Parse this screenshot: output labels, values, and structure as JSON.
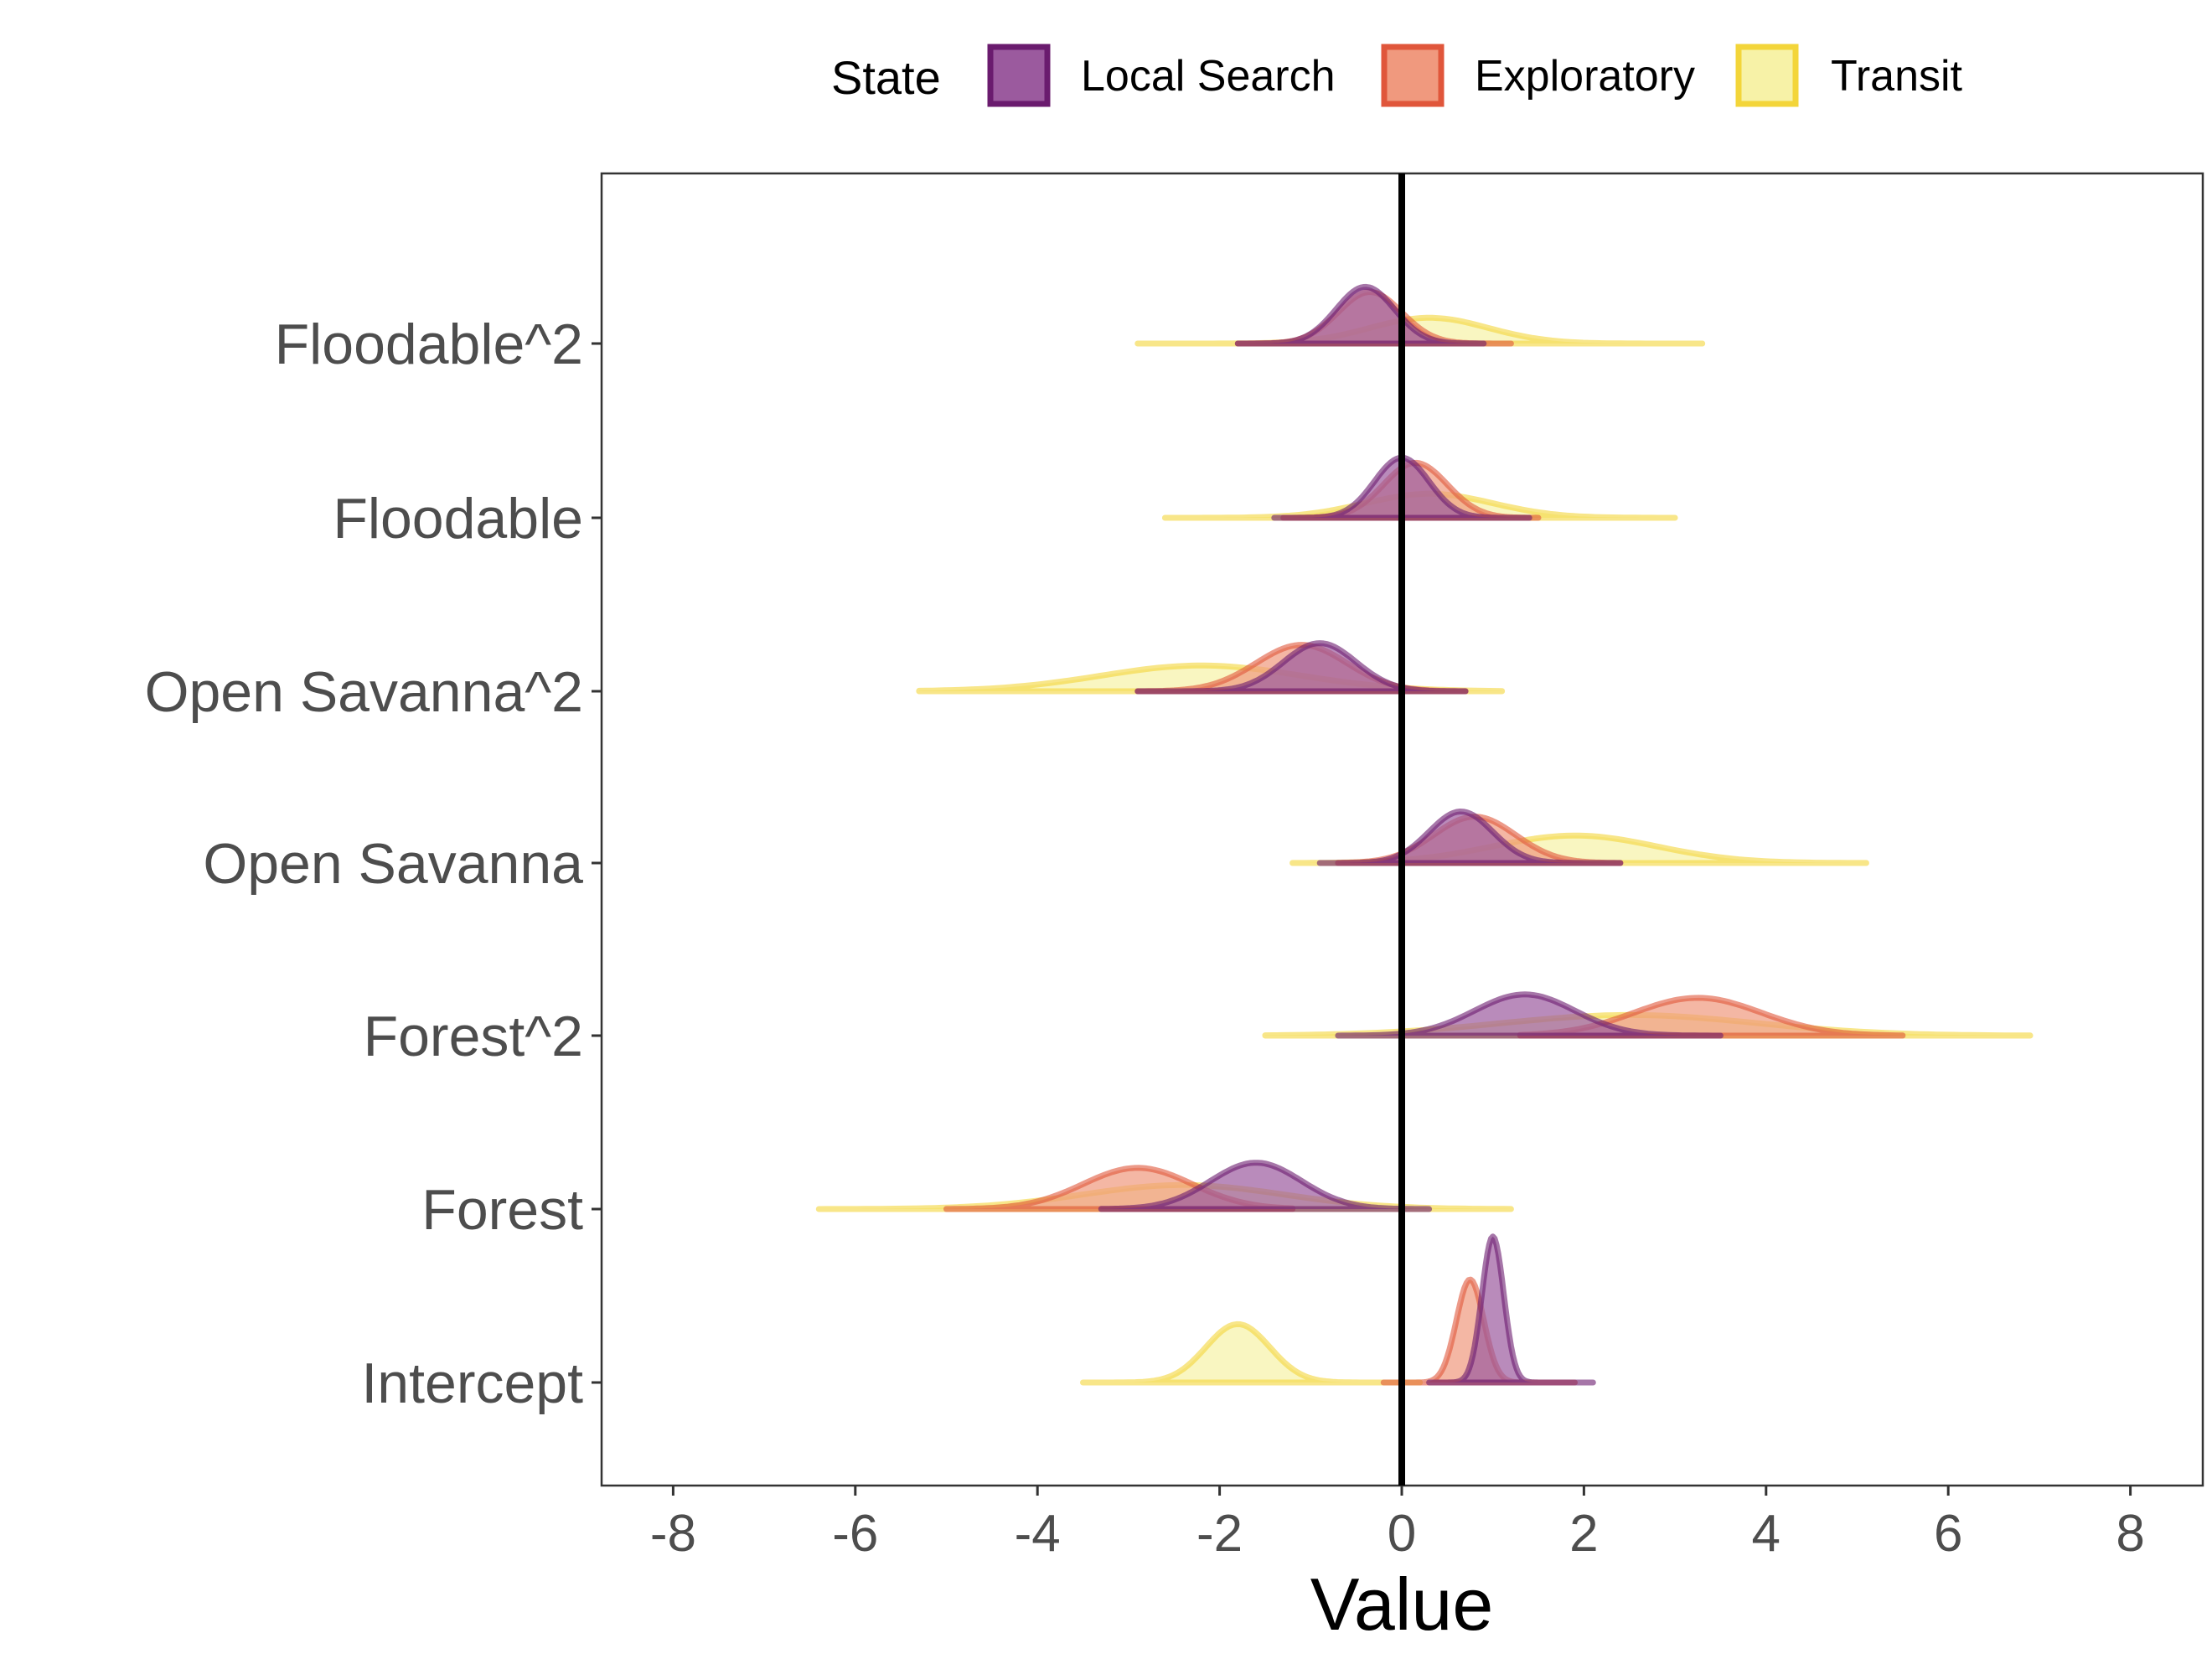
{
  "chart_data": {
    "type": "ridgeline",
    "title": "",
    "xlabel": "Value",
    "ylabel": "",
    "xlim": [
      -8.8,
      8.8
    ],
    "xticks": [
      -8,
      -6,
      -4,
      -2,
      0,
      2,
      4,
      6,
      8
    ],
    "xtick_labels": [
      "-8",
      "-6",
      "-4",
      "-2",
      "0",
      "2",
      "4",
      "6",
      "8"
    ],
    "reference_line_x": 0,
    "grid": false,
    "legend": {
      "title": "State",
      "position": "top"
    },
    "categories": [
      "Intercept",
      "Forest",
      "Forest^2",
      "Open Savanna",
      "Open Savanna^2",
      "Floodable",
      "Floodable^2"
    ],
    "series": [
      {
        "name": "Local Search",
        "color": "#6a1b6e",
        "fill": "#9b5a9e",
        "distributions": [
          {
            "category": "Intercept",
            "mode": 1.0,
            "sd": 0.12,
            "min": 0.3,
            "max": 2.1,
            "peak": 0.85
          },
          {
            "category": "Forest",
            "mode": -1.6,
            "sd": 0.5,
            "min": -3.3,
            "max": 0.3,
            "peak": 0.27
          },
          {
            "category": "Forest^2",
            "mode": 1.35,
            "sd": 0.55,
            "min": -0.7,
            "max": 3.5,
            "peak": 0.24
          },
          {
            "category": "Open Savanna",
            "mode": 0.65,
            "sd": 0.35,
            "min": -0.9,
            "max": 2.4,
            "peak": 0.3
          },
          {
            "category": "Open Savanna^2",
            "mode": -0.9,
            "sd": 0.4,
            "min": -2.9,
            "max": 0.7,
            "peak": 0.28
          },
          {
            "category": "Floodable",
            "mode": 0.0,
            "sd": 0.3,
            "min": -1.4,
            "max": 1.4,
            "peak": 0.35
          },
          {
            "category": "Floodable^2",
            "mode": -0.4,
            "sd": 0.32,
            "min": -1.8,
            "max": 0.9,
            "peak": 0.33
          }
        ]
      },
      {
        "name": "Exploratory",
        "color": "#e0563b",
        "fill": "#f0997e",
        "distributions": [
          {
            "category": "Intercept",
            "mode": 0.75,
            "sd": 0.15,
            "min": -0.2,
            "max": 1.9,
            "peak": 0.6
          },
          {
            "category": "Forest",
            "mode": -2.9,
            "sd": 0.6,
            "min": -5.0,
            "max": -1.2,
            "peak": 0.24
          },
          {
            "category": "Forest^2",
            "mode": 3.25,
            "sd": 0.7,
            "min": 1.3,
            "max": 5.5,
            "peak": 0.22
          },
          {
            "category": "Open Savanna",
            "mode": 0.8,
            "sd": 0.45,
            "min": -0.7,
            "max": 2.4,
            "peak": 0.27
          },
          {
            "category": "Open Savanna^2",
            "mode": -1.1,
            "sd": 0.5,
            "min": -2.9,
            "max": 0.7,
            "peak": 0.27
          },
          {
            "category": "Floodable",
            "mode": 0.15,
            "sd": 0.35,
            "min": -1.3,
            "max": 1.5,
            "peak": 0.32
          },
          {
            "category": "Floodable^2",
            "mode": -0.35,
            "sd": 0.35,
            "min": -1.8,
            "max": 1.2,
            "peak": 0.3
          }
        ]
      },
      {
        "name": "Transit",
        "color": "#f3d53a",
        "fill": "#f7f2a7",
        "distributions": [
          {
            "category": "Intercept",
            "mode": -1.8,
            "sd": 0.35,
            "min": -3.5,
            "max": 0.2,
            "peak": 0.34
          },
          {
            "category": "Forest",
            "mode": -2.4,
            "sd": 1.1,
            "min": -6.4,
            "max": 1.2,
            "peak": 0.14
          },
          {
            "category": "Forest^2",
            "mode": 2.5,
            "sd": 1.4,
            "min": -1.5,
            "max": 6.9,
            "peak": 0.12
          },
          {
            "category": "Open Savanna",
            "mode": 1.9,
            "sd": 0.9,
            "min": -1.2,
            "max": 5.1,
            "peak": 0.16
          },
          {
            "category": "Open Savanna^2",
            "mode": -2.2,
            "sd": 1.1,
            "min": -5.3,
            "max": 1.1,
            "peak": 0.15
          },
          {
            "category": "Floodable",
            "mode": 0.3,
            "sd": 0.7,
            "min": -2.6,
            "max": 3.0,
            "peak": 0.14
          },
          {
            "category": "Floodable^2",
            "mode": 0.3,
            "sd": 0.65,
            "min": -2.9,
            "max": 3.3,
            "peak": 0.15
          }
        ]
      }
    ]
  }
}
